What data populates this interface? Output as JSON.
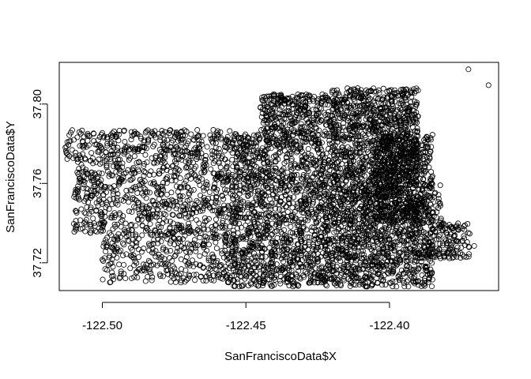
{
  "chart_data": {
    "type": "scatter",
    "title": "",
    "xlabel": "SanFranciscoData$X",
    "ylabel": "SanFranciscoData$Y",
    "xlim": [
      -122.515,
      -122.362
    ],
    "ylim": [
      37.706,
      37.821
    ],
    "x_ticks": [
      -122.5,
      -122.45,
      -122.4
    ],
    "x_tick_labels": [
      "-122.50",
      "-122.45",
      "-122.40"
    ],
    "y_ticks": [
      37.72,
      37.76,
      37.8
    ],
    "y_tick_labels": [
      "37.72",
      "37.76",
      "37.80"
    ],
    "marker": "open-circle",
    "marker_color": "#000000",
    "grid": false,
    "legend": "none",
    "point_count_estimate": 6000,
    "regions": [
      {
        "x": [
          -122.513,
          -122.455
        ],
        "y": [
          37.77,
          37.787
        ],
        "density": 0.55
      },
      {
        "x": [
          -122.51,
          -122.455
        ],
        "y": [
          37.735,
          37.77
        ],
        "density": 0.5
      },
      {
        "x": [
          -122.5,
          -122.455
        ],
        "y": [
          37.71,
          37.735
        ],
        "density": 0.45
      },
      {
        "x": [
          -122.445,
          -122.42
        ],
        "y": [
          37.785,
          37.805
        ],
        "density": 0.9
      },
      {
        "x": [
          -122.455,
          -122.42
        ],
        "y": [
          37.708,
          37.785
        ],
        "density": 0.8
      },
      {
        "x": [
          -122.42,
          -122.39
        ],
        "y": [
          37.73,
          37.808
        ],
        "density": 1.0
      },
      {
        "x": [
          -122.42,
          -122.385
        ],
        "y": [
          37.708,
          37.73
        ],
        "density": 0.85
      },
      {
        "x": [
          -122.405,
          -122.385
        ],
        "y": [
          37.74,
          37.785
        ],
        "density": 0.9
      },
      {
        "x": [
          -122.392,
          -122.372
        ],
        "y": [
          37.722,
          37.74
        ],
        "density": 0.75
      },
      {
        "x": [
          -122.39,
          -122.382
        ],
        "y": [
          37.74,
          37.76
        ],
        "density": 0.5
      }
    ],
    "notable_points": [
      {
        "x": -122.3725,
        "y": 37.8175
      },
      {
        "x": -122.3655,
        "y": 37.8095
      },
      {
        "x": -122.4935,
        "y": 37.7145
      },
      {
        "x": -122.4925,
        "y": 37.7145
      },
      {
        "x": -122.5125,
        "y": 37.7785
      },
      {
        "x": -122.3705,
        "y": 37.7285
      }
    ]
  }
}
